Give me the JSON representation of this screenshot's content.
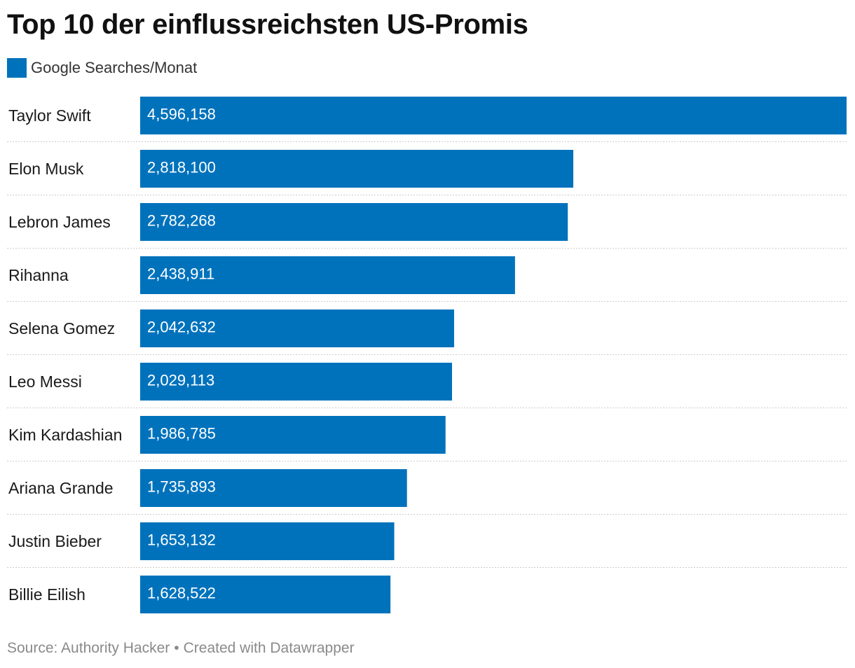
{
  "chart_data": {
    "type": "bar",
    "orientation": "horizontal",
    "title": "Top 10 der einflussreichsten US-Promis",
    "legend": {
      "position": "top-left",
      "entries": [
        "Google Searches/Monat"
      ]
    },
    "categories": [
      "Taylor Swift",
      "Elon Musk",
      "Lebron James",
      "Rihanna",
      "Selena Gomez",
      "Leo Messi",
      "Kim Kardashian",
      "Ariana Grande",
      "Justin Bieber",
      "Billie Eilish"
    ],
    "series": [
      {
        "name": "Google Searches/Monat",
        "values": [
          4596158,
          2818100,
          2782268,
          2438911,
          2042632,
          2029113,
          1986785,
          1735893,
          1653132,
          1628522
        ],
        "labels": [
          "4,596,158",
          "2,818,100",
          "2,782,268",
          "2,438,911",
          "2,042,632",
          "2,029,113",
          "1,986,785",
          "1,735,893",
          "1,653,132",
          "1,628,522"
        ]
      }
    ],
    "xlim": [
      0,
      4596158
    ],
    "grid": false,
    "bar_color": "#0072bc",
    "label_color": "#ffffff",
    "separator_color": "#cccccc"
  },
  "footer": {
    "source": "Source: Authority Hacker",
    "separator": "•",
    "credit": "Created with Datawrapper"
  }
}
